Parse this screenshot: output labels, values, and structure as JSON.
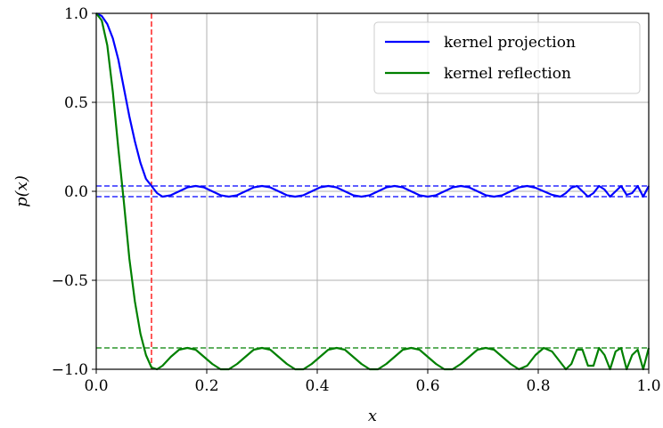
{
  "chart_data": {
    "type": "line",
    "title": "",
    "xlabel": "x",
    "ylabel": "p(x)",
    "xlim": [
      0.0,
      1.0
    ],
    "ylim": [
      -1.0,
      1.0
    ],
    "grid": true,
    "legend_position": "top-right",
    "x_ticks": [
      {
        "value": 0.0,
        "label": "0.0"
      },
      {
        "value": 0.2,
        "label": "0.2"
      },
      {
        "value": 0.4,
        "label": "0.4"
      },
      {
        "value": 0.6,
        "label": "0.6"
      },
      {
        "value": 0.8,
        "label": "0.8"
      },
      {
        "value": 1.0,
        "label": "1.0"
      }
    ],
    "y_ticks": [
      {
        "value": 1.0,
        "label": "1.0"
      },
      {
        "value": 0.5,
        "label": "0.5"
      },
      {
        "value": 0.0,
        "label": "0.0"
      },
      {
        "value": -0.5,
        "label": "−0.5"
      },
      {
        "value": -1.0,
        "label": "−1.0"
      }
    ],
    "series": [
      {
        "name": "kernel projection",
        "color": "#0000ff",
        "x": [
          0.0,
          0.01,
          0.02,
          0.03,
          0.04,
          0.05,
          0.06,
          0.07,
          0.08,
          0.09,
          0.1,
          0.11,
          0.12,
          0.135,
          0.15,
          0.165,
          0.18,
          0.195,
          0.21,
          0.225,
          0.24,
          0.255,
          0.27,
          0.285,
          0.3,
          0.315,
          0.33,
          0.345,
          0.36,
          0.375,
          0.39,
          0.405,
          0.42,
          0.435,
          0.45,
          0.465,
          0.48,
          0.495,
          0.51,
          0.525,
          0.54,
          0.555,
          0.57,
          0.585,
          0.6,
          0.615,
          0.63,
          0.645,
          0.66,
          0.675,
          0.69,
          0.705,
          0.72,
          0.735,
          0.75,
          0.765,
          0.78,
          0.795,
          0.81,
          0.825,
          0.84,
          0.85,
          0.86,
          0.87,
          0.88,
          0.89,
          0.9,
          0.91,
          0.92,
          0.93,
          0.94,
          0.95,
          0.96,
          0.97,
          0.98,
          0.99,
          1.0
        ],
        "values": [
          1.0,
          0.985,
          0.94,
          0.86,
          0.74,
          0.58,
          0.42,
          0.28,
          0.16,
          0.07,
          0.03,
          -0.01,
          -0.03,
          -0.022,
          0.0,
          0.022,
          0.03,
          0.022,
          0.0,
          -0.022,
          -0.03,
          -0.022,
          0.0,
          0.022,
          0.03,
          0.022,
          0.0,
          -0.022,
          -0.03,
          -0.022,
          0.0,
          0.022,
          0.03,
          0.022,
          0.0,
          -0.022,
          -0.03,
          -0.022,
          0.0,
          0.022,
          0.03,
          0.022,
          0.0,
          -0.022,
          -0.03,
          -0.022,
          0.0,
          0.022,
          0.03,
          0.022,
          0.0,
          -0.022,
          -0.03,
          -0.022,
          0.0,
          0.022,
          0.03,
          0.02,
          0.0,
          -0.02,
          -0.03,
          -0.01,
          0.02,
          0.03,
          0.0,
          -0.03,
          -0.01,
          0.03,
          0.01,
          -0.03,
          0.0,
          0.03,
          -0.02,
          -0.01,
          0.03,
          -0.03,
          0.03
        ]
      },
      {
        "name": "kernel reflection",
        "color": "#008000",
        "x": [
          0.0,
          0.01,
          0.02,
          0.03,
          0.04,
          0.05,
          0.06,
          0.07,
          0.08,
          0.09,
          0.1,
          0.11,
          0.12,
          0.135,
          0.15,
          0.165,
          0.18,
          0.195,
          0.21,
          0.225,
          0.24,
          0.255,
          0.27,
          0.285,
          0.3,
          0.315,
          0.33,
          0.345,
          0.36,
          0.375,
          0.39,
          0.405,
          0.42,
          0.435,
          0.45,
          0.465,
          0.48,
          0.495,
          0.51,
          0.525,
          0.54,
          0.555,
          0.57,
          0.585,
          0.6,
          0.615,
          0.63,
          0.645,
          0.66,
          0.675,
          0.69,
          0.705,
          0.72,
          0.735,
          0.75,
          0.765,
          0.78,
          0.795,
          0.81,
          0.825,
          0.84,
          0.85,
          0.86,
          0.87,
          0.88,
          0.89,
          0.9,
          0.91,
          0.92,
          0.93,
          0.94,
          0.95,
          0.96,
          0.97,
          0.98,
          0.99,
          1.0
        ],
        "values": [
          1.0,
          0.96,
          0.82,
          0.56,
          0.24,
          -0.06,
          -0.38,
          -0.62,
          -0.8,
          -0.92,
          -0.99,
          -1.0,
          -0.98,
          -0.93,
          -0.89,
          -0.88,
          -0.89,
          -0.93,
          -0.97,
          -1.0,
          -1.0,
          -0.97,
          -0.93,
          -0.89,
          -0.88,
          -0.89,
          -0.93,
          -0.97,
          -1.0,
          -1.0,
          -0.97,
          -0.93,
          -0.89,
          -0.88,
          -0.89,
          -0.93,
          -0.97,
          -1.0,
          -1.0,
          -0.97,
          -0.93,
          -0.89,
          -0.88,
          -0.89,
          -0.93,
          -0.97,
          -1.0,
          -1.0,
          -0.97,
          -0.93,
          -0.89,
          -0.88,
          -0.89,
          -0.93,
          -0.97,
          -1.0,
          -0.98,
          -0.92,
          -0.88,
          -0.9,
          -0.96,
          -1.0,
          -0.97,
          -0.89,
          -0.89,
          -0.98,
          -0.98,
          -0.88,
          -0.92,
          -1.0,
          -0.9,
          -0.88,
          -1.0,
          -0.92,
          -0.89,
          -1.0,
          -0.88
        ]
      }
    ],
    "reference_lines": [
      {
        "orientation": "horizontal",
        "value": 0.03,
        "color": "#0000ff",
        "style": "dashed"
      },
      {
        "orientation": "horizontal",
        "value": -0.03,
        "color": "#0000ff",
        "style": "dashed"
      },
      {
        "orientation": "horizontal",
        "value": -0.88,
        "color": "#008000",
        "style": "dashed"
      },
      {
        "orientation": "vertical",
        "value": 0.1,
        "color": "#ff0000",
        "style": "dashed"
      }
    ]
  }
}
